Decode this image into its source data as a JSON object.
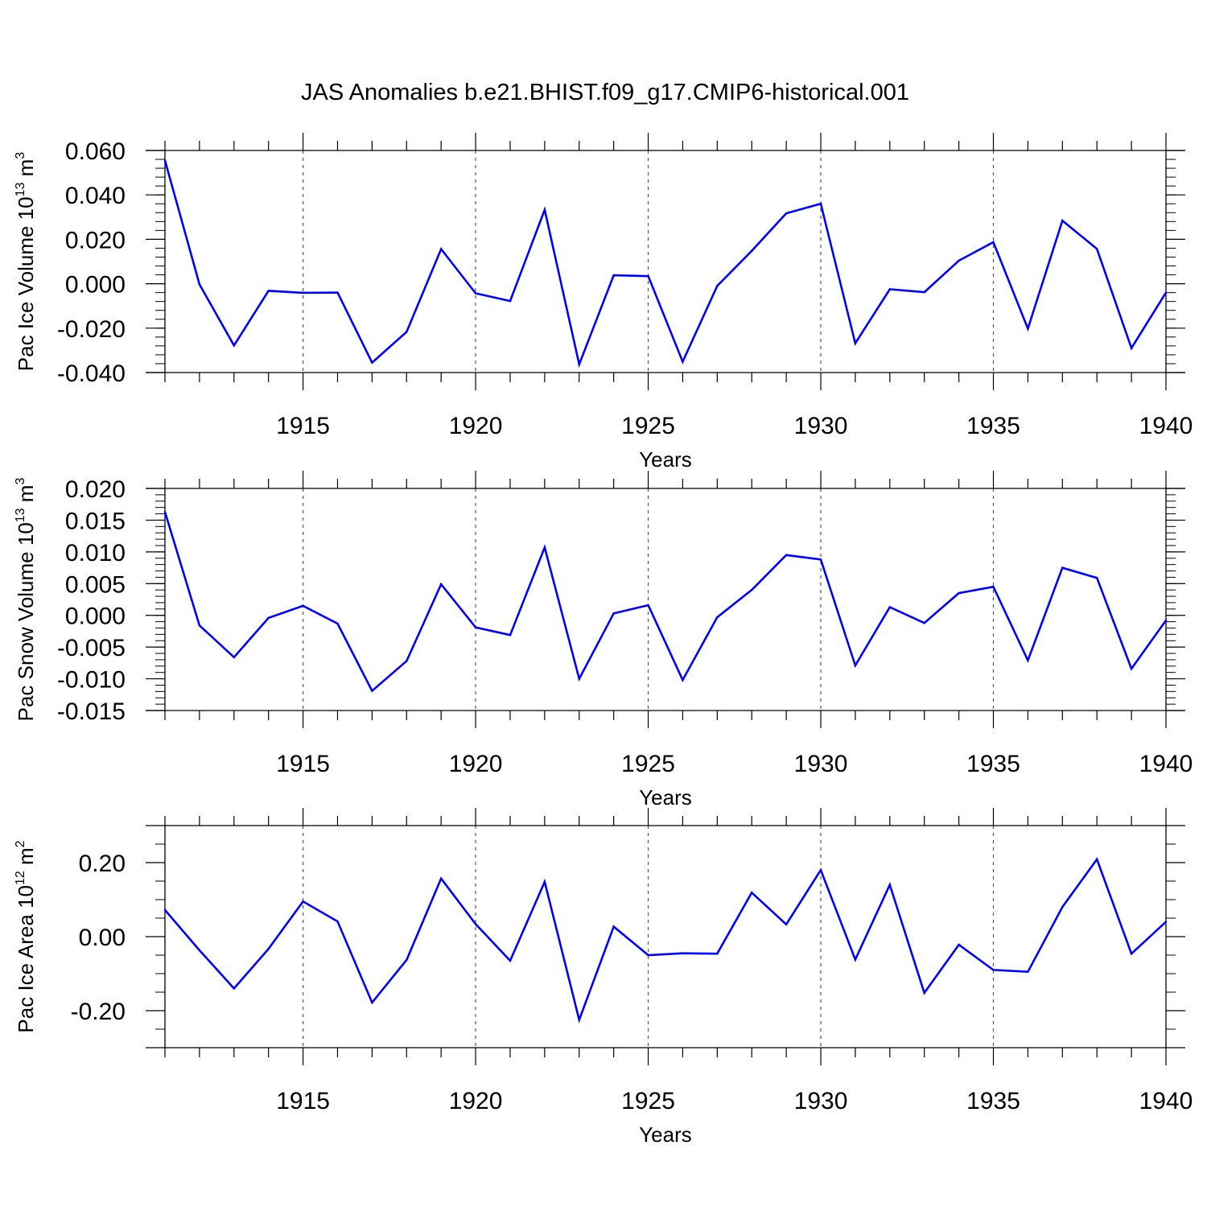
{
  "figure_title": "JAS Anomalies b.e21.BHIST.f09_g17.CMIP6-historical.001",
  "colors": {
    "line": "#0000ff",
    "axis": "#000000",
    "grid": "#555555"
  },
  "chart_data": [
    {
      "type": "line",
      "ylabel": {
        "main": "Pac Ice Volume 10",
        "exp": "13",
        "unit": " m",
        "unit_exp": "3"
      },
      "xlabel": "Years",
      "xlim": [
        1911,
        1940
      ],
      "ylim": [
        -0.04,
        0.06
      ],
      "yticks": [
        -0.04,
        -0.02,
        0.0,
        0.02,
        0.04,
        0.06
      ],
      "ytick_labels": [
        "-0.040",
        "-0.020",
        "0.000",
        "0.020",
        "0.040",
        "0.060"
      ],
      "yminor": 0.004,
      "xticks": [
        1915,
        1920,
        1925,
        1930,
        1935,
        1940
      ],
      "xtick_labels": [
        "1915",
        "1920",
        "1925",
        "1930",
        "1935",
        "1940"
      ],
      "series": [
        {
          "name": "Pac Ice Volume",
          "x": [
            1911,
            1912,
            1913,
            1914,
            1915,
            1916,
            1917,
            1918,
            1919,
            1920,
            1921,
            1922,
            1923,
            1924,
            1925,
            1926,
            1927,
            1928,
            1929,
            1930,
            1931,
            1932,
            1933,
            1934,
            1935,
            1936,
            1937,
            1938,
            1939,
            1940
          ],
          "values": [
            0.0555,
            -0.0003,
            -0.0278,
            -0.0032,
            -0.0041,
            -0.004,
            -0.0355,
            -0.0217,
            0.0156,
            -0.0043,
            -0.0078,
            0.0333,
            -0.0363,
            0.0038,
            0.0034,
            -0.0351,
            -0.001,
            0.0148,
            0.0317,
            0.036,
            -0.0268,
            -0.0025,
            -0.0038,
            0.0104,
            0.0187,
            -0.0202,
            0.0284,
            0.0157,
            -0.029,
            -0.004
          ]
        }
      ]
    },
    {
      "type": "line",
      "ylabel": {
        "main": "Pac Snow Volume 10",
        "exp": "13",
        "unit": " m",
        "unit_exp": "3"
      },
      "xlabel": "Years",
      "xlim": [
        1911,
        1940
      ],
      "ylim": [
        -0.015,
        0.02
      ],
      "yticks": [
        -0.015,
        -0.01,
        -0.005,
        0.0,
        0.005,
        0.01,
        0.015,
        0.02
      ],
      "ytick_labels": [
        "-0.015",
        "-0.010",
        "-0.005",
        "0.000",
        "0.005",
        "0.010",
        "0.015",
        "0.020"
      ],
      "yminor": 0.001,
      "xticks": [
        1915,
        1920,
        1925,
        1930,
        1935,
        1940
      ],
      "xtick_labels": [
        "1915",
        "1920",
        "1925",
        "1930",
        "1935",
        "1940"
      ],
      "series": [
        {
          "name": "Pac Snow Volume",
          "x": [
            1911,
            1912,
            1913,
            1914,
            1915,
            1916,
            1917,
            1918,
            1919,
            1920,
            1921,
            1922,
            1923,
            1924,
            1925,
            1926,
            1927,
            1928,
            1929,
            1930,
            1931,
            1932,
            1933,
            1934,
            1935,
            1936,
            1937,
            1938,
            1939,
            1940
          ],
          "values": [
            0.0163,
            -0.0016,
            -0.0066,
            -0.0004,
            0.0015,
            -0.0013,
            -0.0119,
            -0.0072,
            0.0049,
            -0.0019,
            -0.0031,
            0.0107,
            -0.01,
            0.0003,
            0.0016,
            -0.0102,
            -0.0003,
            0.004,
            0.0095,
            0.0088,
            -0.0079,
            0.0013,
            -0.0012,
            0.0035,
            0.0045,
            -0.0071,
            0.0075,
            0.0059,
            -0.0084,
            -0.0008
          ]
        }
      ]
    },
    {
      "type": "line",
      "ylabel": {
        "main": "Pac Ice Area 10",
        "exp": "12",
        "unit": " m",
        "unit_exp": "2"
      },
      "xlabel": "Years",
      "xlim": [
        1911,
        1940
      ],
      "ylim": [
        -0.3,
        0.3
      ],
      "yticks": [
        -0.2,
        0.0,
        0.2
      ],
      "ytick_labels": [
        "-0.20",
        "0.00",
        "0.20"
      ],
      "yminor": 0.05,
      "xticks": [
        1915,
        1920,
        1925,
        1930,
        1935,
        1940
      ],
      "xtick_labels": [
        "1915",
        "1920",
        "1925",
        "1930",
        "1935",
        "1940"
      ],
      "series": [
        {
          "name": "Pac Ice Area",
          "x": [
            1911,
            1912,
            1913,
            1914,
            1915,
            1916,
            1917,
            1918,
            1919,
            1920,
            1921,
            1922,
            1923,
            1924,
            1925,
            1926,
            1927,
            1928,
            1929,
            1930,
            1931,
            1932,
            1933,
            1934,
            1935,
            1936,
            1937,
            1938,
            1939,
            1940
          ],
          "values": [
            0.072,
            -0.037,
            -0.14,
            -0.033,
            0.095,
            0.041,
            -0.178,
            -0.063,
            0.157,
            0.034,
            -0.065,
            0.148,
            -0.225,
            0.027,
            -0.05,
            -0.045,
            -0.046,
            0.119,
            0.033,
            0.18,
            -0.062,
            0.14,
            -0.152,
            -0.022,
            -0.09,
            -0.095,
            0.08,
            0.209,
            -0.046,
            0.04
          ]
        }
      ]
    }
  ]
}
